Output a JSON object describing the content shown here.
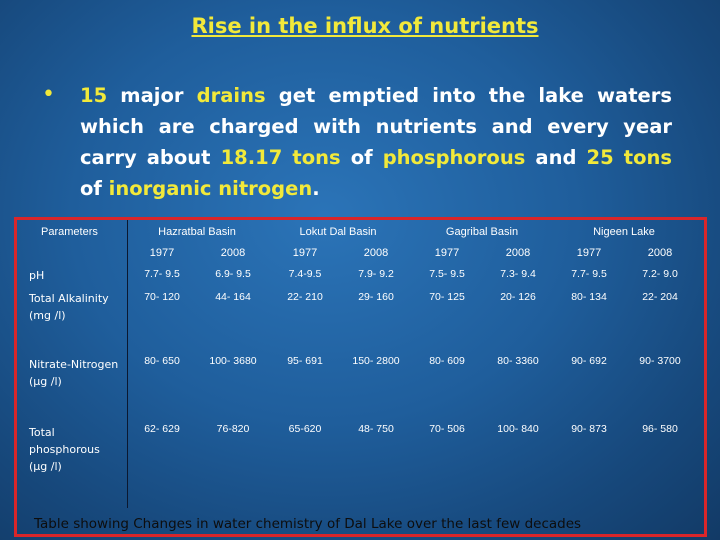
{
  "slide_title": "Rise in the influx of nutrients",
  "bullet": {
    "num_drains": "15",
    "t1": " major ",
    "drains": "drains",
    "t2": " get emptied into the lake waters which are charged with nutrients and every year carry about ",
    "phos_amount": "18.17 tons",
    "t3": " of ",
    "phosphorous": "phosphorous",
    "t4": " and ",
    "nitro_amount": "25 tons",
    "t5": " of ",
    "nitrogen": "inorganic nitrogen",
    "t6": "."
  },
  "table": {
    "params_header": "Parameters",
    "basins": [
      "Hazratbal Basin",
      "Lokut Dal Basin",
      "Gagribal Basin",
      "Nigeen Lake"
    ],
    "years": [
      "1977",
      "2008",
      "1977",
      "2008",
      "1977",
      "2008",
      "1977",
      "2008"
    ],
    "rows": [
      {
        "param": "pH",
        "values": [
          "7.7- 9.5",
          "6.9- 9.5",
          "7.4-9.5",
          "7.9- 9.2",
          "7.5- 9.5",
          "7.3- 9.4",
          "7.7- 9.5",
          "7.2- 9.0"
        ]
      },
      {
        "param": "Total Alkalinity (mg /l)",
        "values": [
          "70- 120",
          "44- 164",
          "22- 210",
          "29- 160",
          "70- 125",
          "20- 126",
          "80- 134",
          "22- 204"
        ]
      },
      {
        "param": "Nitrate-Nitrogen (µg /l)",
        "values": [
          "80- 650",
          "100- 3680",
          "95- 691",
          "150- 2800",
          "80- 609",
          "80- 3360",
          "90- 692",
          "90- 3700"
        ]
      },
      {
        "param": "Total phosphorous (µg /l)",
        "values": [
          "62- 629",
          "76-820",
          "65-620",
          "48- 750",
          "70- 506",
          "100- 840",
          "90- 873",
          "96- 580"
        ]
      }
    ]
  },
  "caption": "Table showing Changes in water chemistry of Dal Lake over the last few decades",
  "colors": {
    "accent": "#f2e93a",
    "border": "#d9262a",
    "background": "#1f5e9c"
  }
}
